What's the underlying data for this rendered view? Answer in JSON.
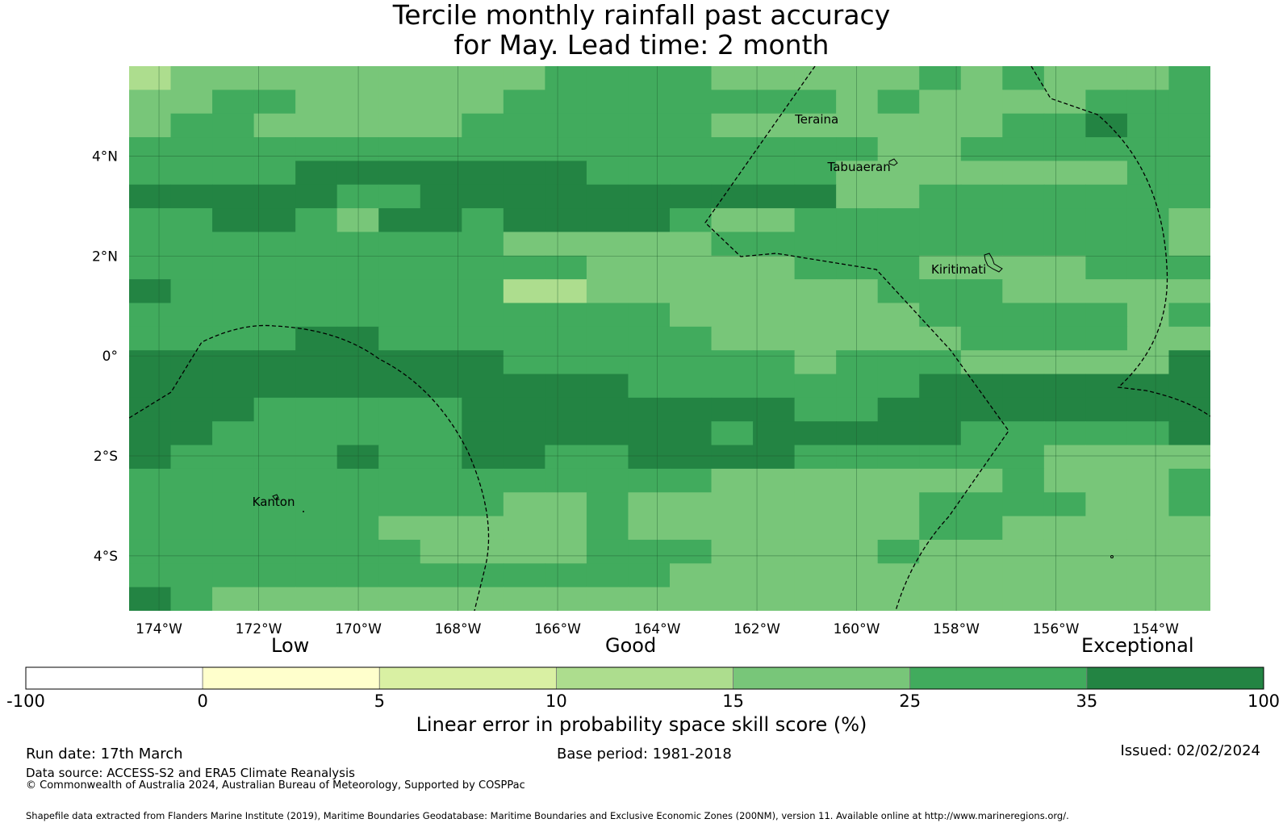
{
  "title": {
    "line1": "Tercile monthly rainfall past accuracy",
    "line2": "for May. Lead time: 2 month"
  },
  "map": {
    "lon_range": [
      -174.6,
      -152.9
    ],
    "lat_range": [
      -5.1,
      5.8
    ],
    "lon_ticks": [
      {
        "value": -174,
        "label": "174°W"
      },
      {
        "value": -172,
        "label": "172°W"
      },
      {
        "value": -170,
        "label": "170°W"
      },
      {
        "value": -168,
        "label": "168°W"
      },
      {
        "value": -166,
        "label": "166°W"
      },
      {
        "value": -164,
        "label": "164°W"
      },
      {
        "value": -162,
        "label": "162°W"
      },
      {
        "value": -160,
        "label": "160°W"
      },
      {
        "value": -158,
        "label": "158°W"
      },
      {
        "value": -156,
        "label": "156°W"
      },
      {
        "value": -154,
        "label": "154°W"
      }
    ],
    "lat_ticks": [
      {
        "value": 4,
        "label": "4°N"
      },
      {
        "value": 2,
        "label": "2°N"
      },
      {
        "value": 0,
        "label": "0°"
      },
      {
        "value": -2,
        "label": "2°S"
      },
      {
        "value": -4,
        "label": "4°S"
      }
    ],
    "places": [
      {
        "name": "Teraina",
        "lon": -160.8,
        "lat": 4.65
      },
      {
        "name": "Tabuaeran",
        "lon": -159.95,
        "lat": 3.7
      },
      {
        "name": "Kiritimati",
        "lon": -157.95,
        "lat": 1.65
      },
      {
        "name": "Kanton",
        "lon": -171.7,
        "lat": -3.0
      }
    ],
    "skill_levels": [
      "15-25",
      "25-35",
      "35-100"
    ],
    "skill_notes": "Grid of ~0.83° cells; class 1 = 10-15, 2 = 15-25, 3 = 25-35, 4 = 35-100",
    "grid": [
      "12222222223333222223232223",
      "22332222233333333232222333",
      "23322222333333222222233433",
      "33333333333333333322333333",
      "33334444444333333222222233",
      "44444334444444444223333333",
      "33443244344443223333333332",
      "33333333322222333333333332",
      "33333333333222223332222333",
      "43333333311222222233322222",
      "33333333333332222223333323",
      "33334433333333222222333322",
      "44444444433333332333222224",
      "44444444444433333334444444",
      "44433333444444443344444444",
      "44333333444444344444333334",
      "43333433443344443333332222",
      "33333333333333222222232223",
      "33333333322322222223333223",
      "33333322222322222223322222",
      "33333332222333222232222222",
      "33333333333332222222222222",
      "43222222222222222222222222"
    ]
  },
  "colorbar": {
    "category_labels": [
      "Low",
      "Good",
      "Exceptional"
    ],
    "ticks": [
      "-100",
      "0",
      "5",
      "10",
      "15",
      "25",
      "35",
      "100"
    ],
    "colors": [
      "#ffffff",
      "#ffffcc",
      "#d9f0a3",
      "#addd8e",
      "#78c679",
      "#41ab5d",
      "#238443"
    ],
    "title": "Linear error in probability space skill score (%)"
  },
  "footer": {
    "run_date": "Run date: 17th March",
    "base_period": "Base period: 1981-2018",
    "issued": "Issued: 02/02/2024",
    "data_source": "Data source: ACCESS-S2 and ERA5 Climate Reanalysis",
    "copyright": "© Commonwealth of Australia 2024, Australian Bureau of Meteorology, Supported by COSPPac",
    "shapefile": "Shapefile data extracted from Flanders Marine Institute (2019), Maritime Boundaries Geodatabase: Maritime Boundaries and Exclusive Economic Zones (200NM), version 11. Available online at http://www.marineregions.org/."
  }
}
